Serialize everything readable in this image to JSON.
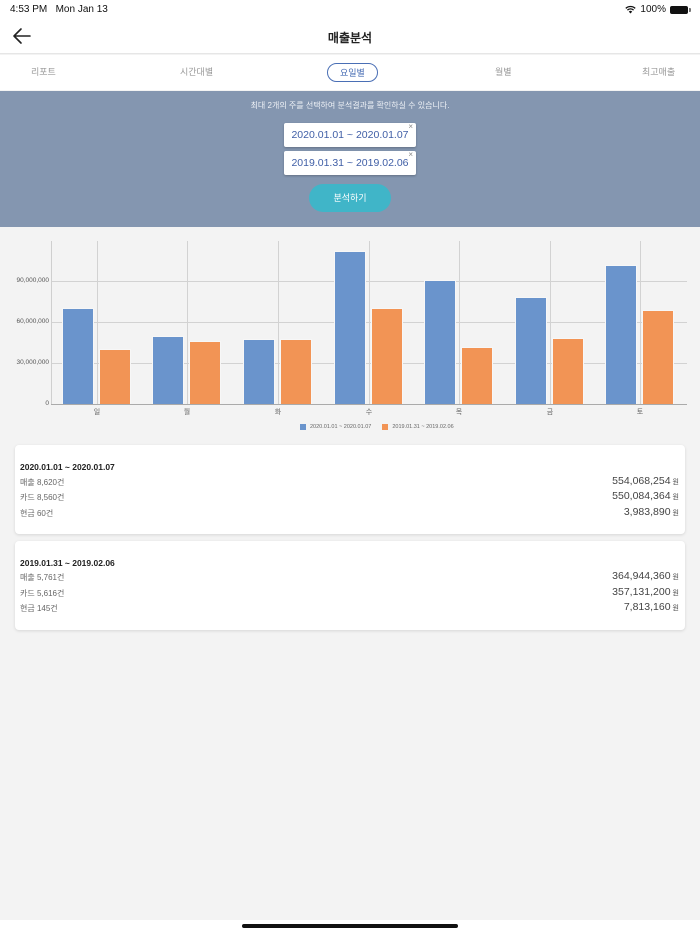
{
  "status_bar": {
    "time": "4:53 PM",
    "date": "Mon Jan 13",
    "battery": "100%"
  },
  "header": {
    "title": "매출분석",
    "back_icon": "arrow-left-icon"
  },
  "tabs": [
    {
      "label": "리포트",
      "active": false
    },
    {
      "label": "시간대별",
      "active": false
    },
    {
      "label": "요일별",
      "active": true
    },
    {
      "label": "월별",
      "active": false
    },
    {
      "label": "최고매출",
      "active": false
    }
  ],
  "filter": {
    "hint": "최대 2개의 주를 선택하여 분석결과를 확인하실 수 있습니다.",
    "ranges": [
      {
        "label": "2020.01.01 ~ 2020.01.07",
        "remove": "×"
      },
      {
        "label": "2019.01.31 ~ 2019.02.06",
        "remove": "×"
      }
    ],
    "analyze_label": "분석하기"
  },
  "colors": {
    "series1": "#6a94cc",
    "series2": "#f29455",
    "accent": "#4a6fb5",
    "button": "#40b5c8",
    "filter_bg": "#8496b0"
  },
  "chart_data": {
    "type": "bar",
    "title": "",
    "xlabel": "",
    "ylabel": "",
    "categories": [
      "일",
      "월",
      "화",
      "수",
      "목",
      "금",
      "토"
    ],
    "series": [
      {
        "name": "2020.01.01 ~ 2020.01.07",
        "color": "#6a94cc",
        "values": [
          70500000,
          50000000,
          47500000,
          112000000,
          90500000,
          78300000,
          102000000
        ]
      },
      {
        "name": "2019.01.31 ~ 2019.02.06",
        "color": "#f29455",
        "values": [
          40000000,
          45900000,
          47500000,
          70500000,
          41500000,
          48000000,
          68800000
        ]
      }
    ],
    "yticks": [
      "0",
      "30,000,000",
      "60,000,000",
      "90,000,000"
    ],
    "ylim": [
      0,
      120000000
    ],
    "grid": true,
    "legend_position": "bottom"
  },
  "summaries": [
    {
      "title": "2020.01.01 ~ 2020.01.07",
      "rows": [
        {
          "label": "매출 8,620건",
          "amount": "554,068,254",
          "unit": "원"
        },
        {
          "label": "카드 8,560건",
          "amount": "550,084,364",
          "unit": "원"
        },
        {
          "label": "현금 60건",
          "amount": "3,983,890",
          "unit": "원"
        }
      ]
    },
    {
      "title": "2019.01.31 ~ 2019.02.06",
      "rows": [
        {
          "label": "매출 5,761건",
          "amount": "364,944,360",
          "unit": "원"
        },
        {
          "label": "카드 5,616건",
          "amount": "357,131,200",
          "unit": "원"
        },
        {
          "label": "현금 145건",
          "amount": "7,813,160",
          "unit": "원"
        }
      ]
    }
  ]
}
